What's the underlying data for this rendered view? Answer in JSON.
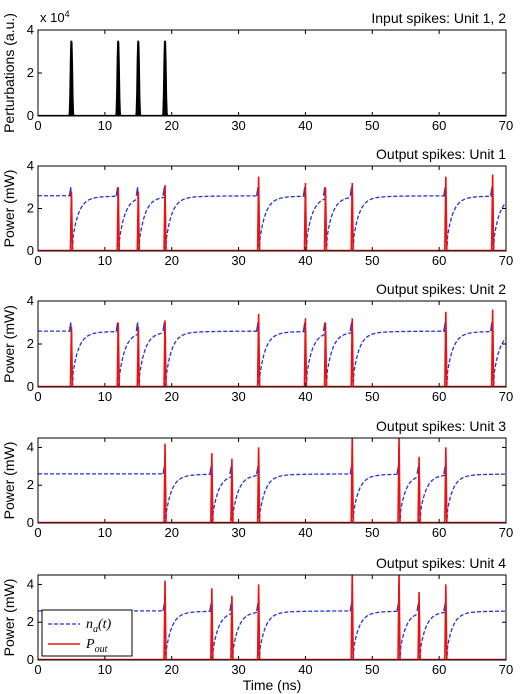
{
  "figure": {
    "xlabel": "Time (ns)",
    "xlim": [
      0,
      70
    ],
    "xticks": [
      0,
      10,
      20,
      30,
      40,
      50,
      60,
      70
    ],
    "colors": {
      "na": "#2233dd",
      "pout": "#ee1111",
      "perturbation": "#000000"
    },
    "legend": {
      "placement": "upper-left of panel 5",
      "na": {
        "main": "n",
        "sub": "a",
        "rest": "(t)"
      },
      "pout": {
        "main": "P",
        "sub": "out"
      }
    }
  },
  "chart_data": [
    {
      "type": "line",
      "title": "Input spikes: Unit 1, 2",
      "ylabel": "Perturbations (a.u.)",
      "exponent": "x 10",
      "exponent_power": "4",
      "ylim": [
        0,
        40000
      ],
      "yticks": [
        0,
        2,
        4
      ],
      "series": [
        {
          "key": "perturbation",
          "spikes": [
            5,
            12,
            15,
            19
          ],
          "peak": 35000
        }
      ]
    },
    {
      "type": "line",
      "title": "Output spikes: Unit 1",
      "ylabel": "Power (mW)",
      "ylim": [
        0,
        4
      ],
      "yticks": [
        0,
        2,
        4
      ],
      "series": [
        {
          "key": "na",
          "baseline": 2.6,
          "drops": [
            5,
            12,
            15,
            19,
            33,
            40,
            43,
            47,
            61,
            68
          ],
          "overshoot": 3.0
        },
        {
          "key": "pout",
          "spikes": [
            5,
            12,
            15,
            19,
            33,
            40,
            43,
            47,
            61,
            68
          ],
          "peaks": [
            2.8,
            3.0,
            2.8,
            3.1,
            3.5,
            3.2,
            3.0,
            3.2,
            3.5,
            3.6
          ]
        }
      ]
    },
    {
      "type": "line",
      "title": "Output spikes: Unit 2",
      "ylabel": "Power (mW)",
      "ylim": [
        0,
        4
      ],
      "yticks": [
        0,
        2,
        4
      ],
      "series": [
        {
          "key": "na",
          "baseline": 2.6,
          "drops": [
            5,
            12,
            15,
            19,
            33,
            40,
            43,
            47,
            61,
            68
          ],
          "overshoot": 3.0
        },
        {
          "key": "pout",
          "spikes": [
            5,
            12,
            15,
            19,
            33,
            40,
            43,
            47,
            61,
            68
          ],
          "peaks": [
            2.8,
            3.0,
            2.8,
            3.1,
            3.4,
            3.2,
            3.0,
            3.2,
            3.5,
            3.6
          ]
        }
      ]
    },
    {
      "type": "line",
      "title": "Output spikes: Unit 3",
      "ylabel": "Power (mW)",
      "ylim": [
        0,
        4.5
      ],
      "yticks": [
        0,
        2,
        4
      ],
      "series": [
        {
          "key": "na",
          "baseline": 2.6,
          "drops": [
            19,
            26,
            29,
            33,
            47,
            54,
            57,
            61
          ],
          "overshoot": 3.0
        },
        {
          "key": "pout",
          "spikes": [
            19,
            26,
            29,
            33,
            47,
            54,
            57,
            61
          ],
          "peaks": [
            4.2,
            3.7,
            3.4,
            4.0,
            4.6,
            4.6,
            3.5,
            4.0
          ]
        }
      ]
    },
    {
      "type": "line",
      "title": "Output spikes: Unit 4",
      "ylabel": "Power (mW)",
      "ylim": [
        0,
        4.5
      ],
      "yticks": [
        0,
        2,
        4
      ],
      "series": [
        {
          "key": "na",
          "baseline": 2.6,
          "drops": [
            19,
            26,
            29,
            33,
            47,
            54,
            57,
            61
          ],
          "overshoot": 3.0
        },
        {
          "key": "pout",
          "spikes": [
            19,
            26,
            29,
            33,
            47,
            54,
            57,
            61
          ],
          "peaks": [
            4.2,
            3.8,
            3.4,
            4.0,
            4.6,
            4.6,
            3.6,
            4.0
          ]
        }
      ]
    }
  ]
}
